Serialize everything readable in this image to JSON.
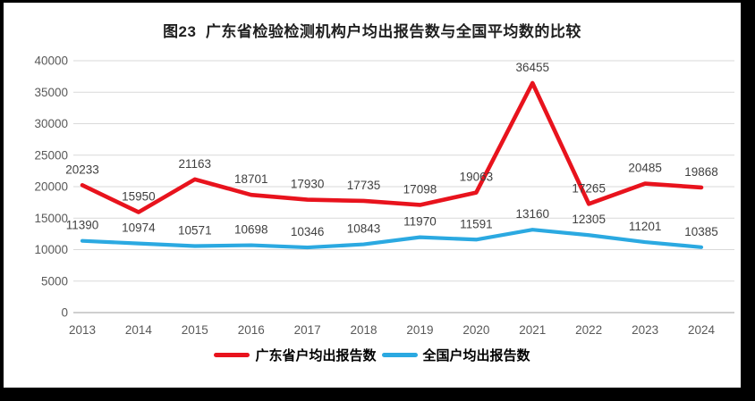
{
  "chart_data": {
    "type": "line",
    "title": "图23  广东省检验检测机构户均出报告数与全国平均数的比较",
    "x": [
      "2013",
      "2014",
      "2015",
      "2016",
      "2017",
      "2018",
      "2019",
      "2020",
      "2021",
      "2022",
      "2023",
      "2024"
    ],
    "series": [
      {
        "name": "广东省户均出报告数",
        "color": "#E8131D",
        "values": [
          20233,
          15950,
          21163,
          18701,
          17930,
          17735,
          17098,
          19063,
          36455,
          17265,
          20485,
          19868
        ]
      },
      {
        "name": "全国户均出报告数",
        "color": "#2BA9E1",
        "values": [
          11390,
          10974,
          10571,
          10698,
          10346,
          10843,
          11970,
          11591,
          13160,
          12305,
          11201,
          10385
        ]
      }
    ],
    "ylim": [
      0,
      40000
    ],
    "yticks": [
      0,
      5000,
      10000,
      15000,
      20000,
      25000,
      30000,
      35000,
      40000
    ],
    "grid": "horizontal",
    "gridline_color": "#D9D9D9",
    "baseline_color": "#BFBFBF",
    "axis_label_color": "#595959",
    "data_label_color": "#404040",
    "legend_position": "bottom",
    "data_labels": true
  }
}
